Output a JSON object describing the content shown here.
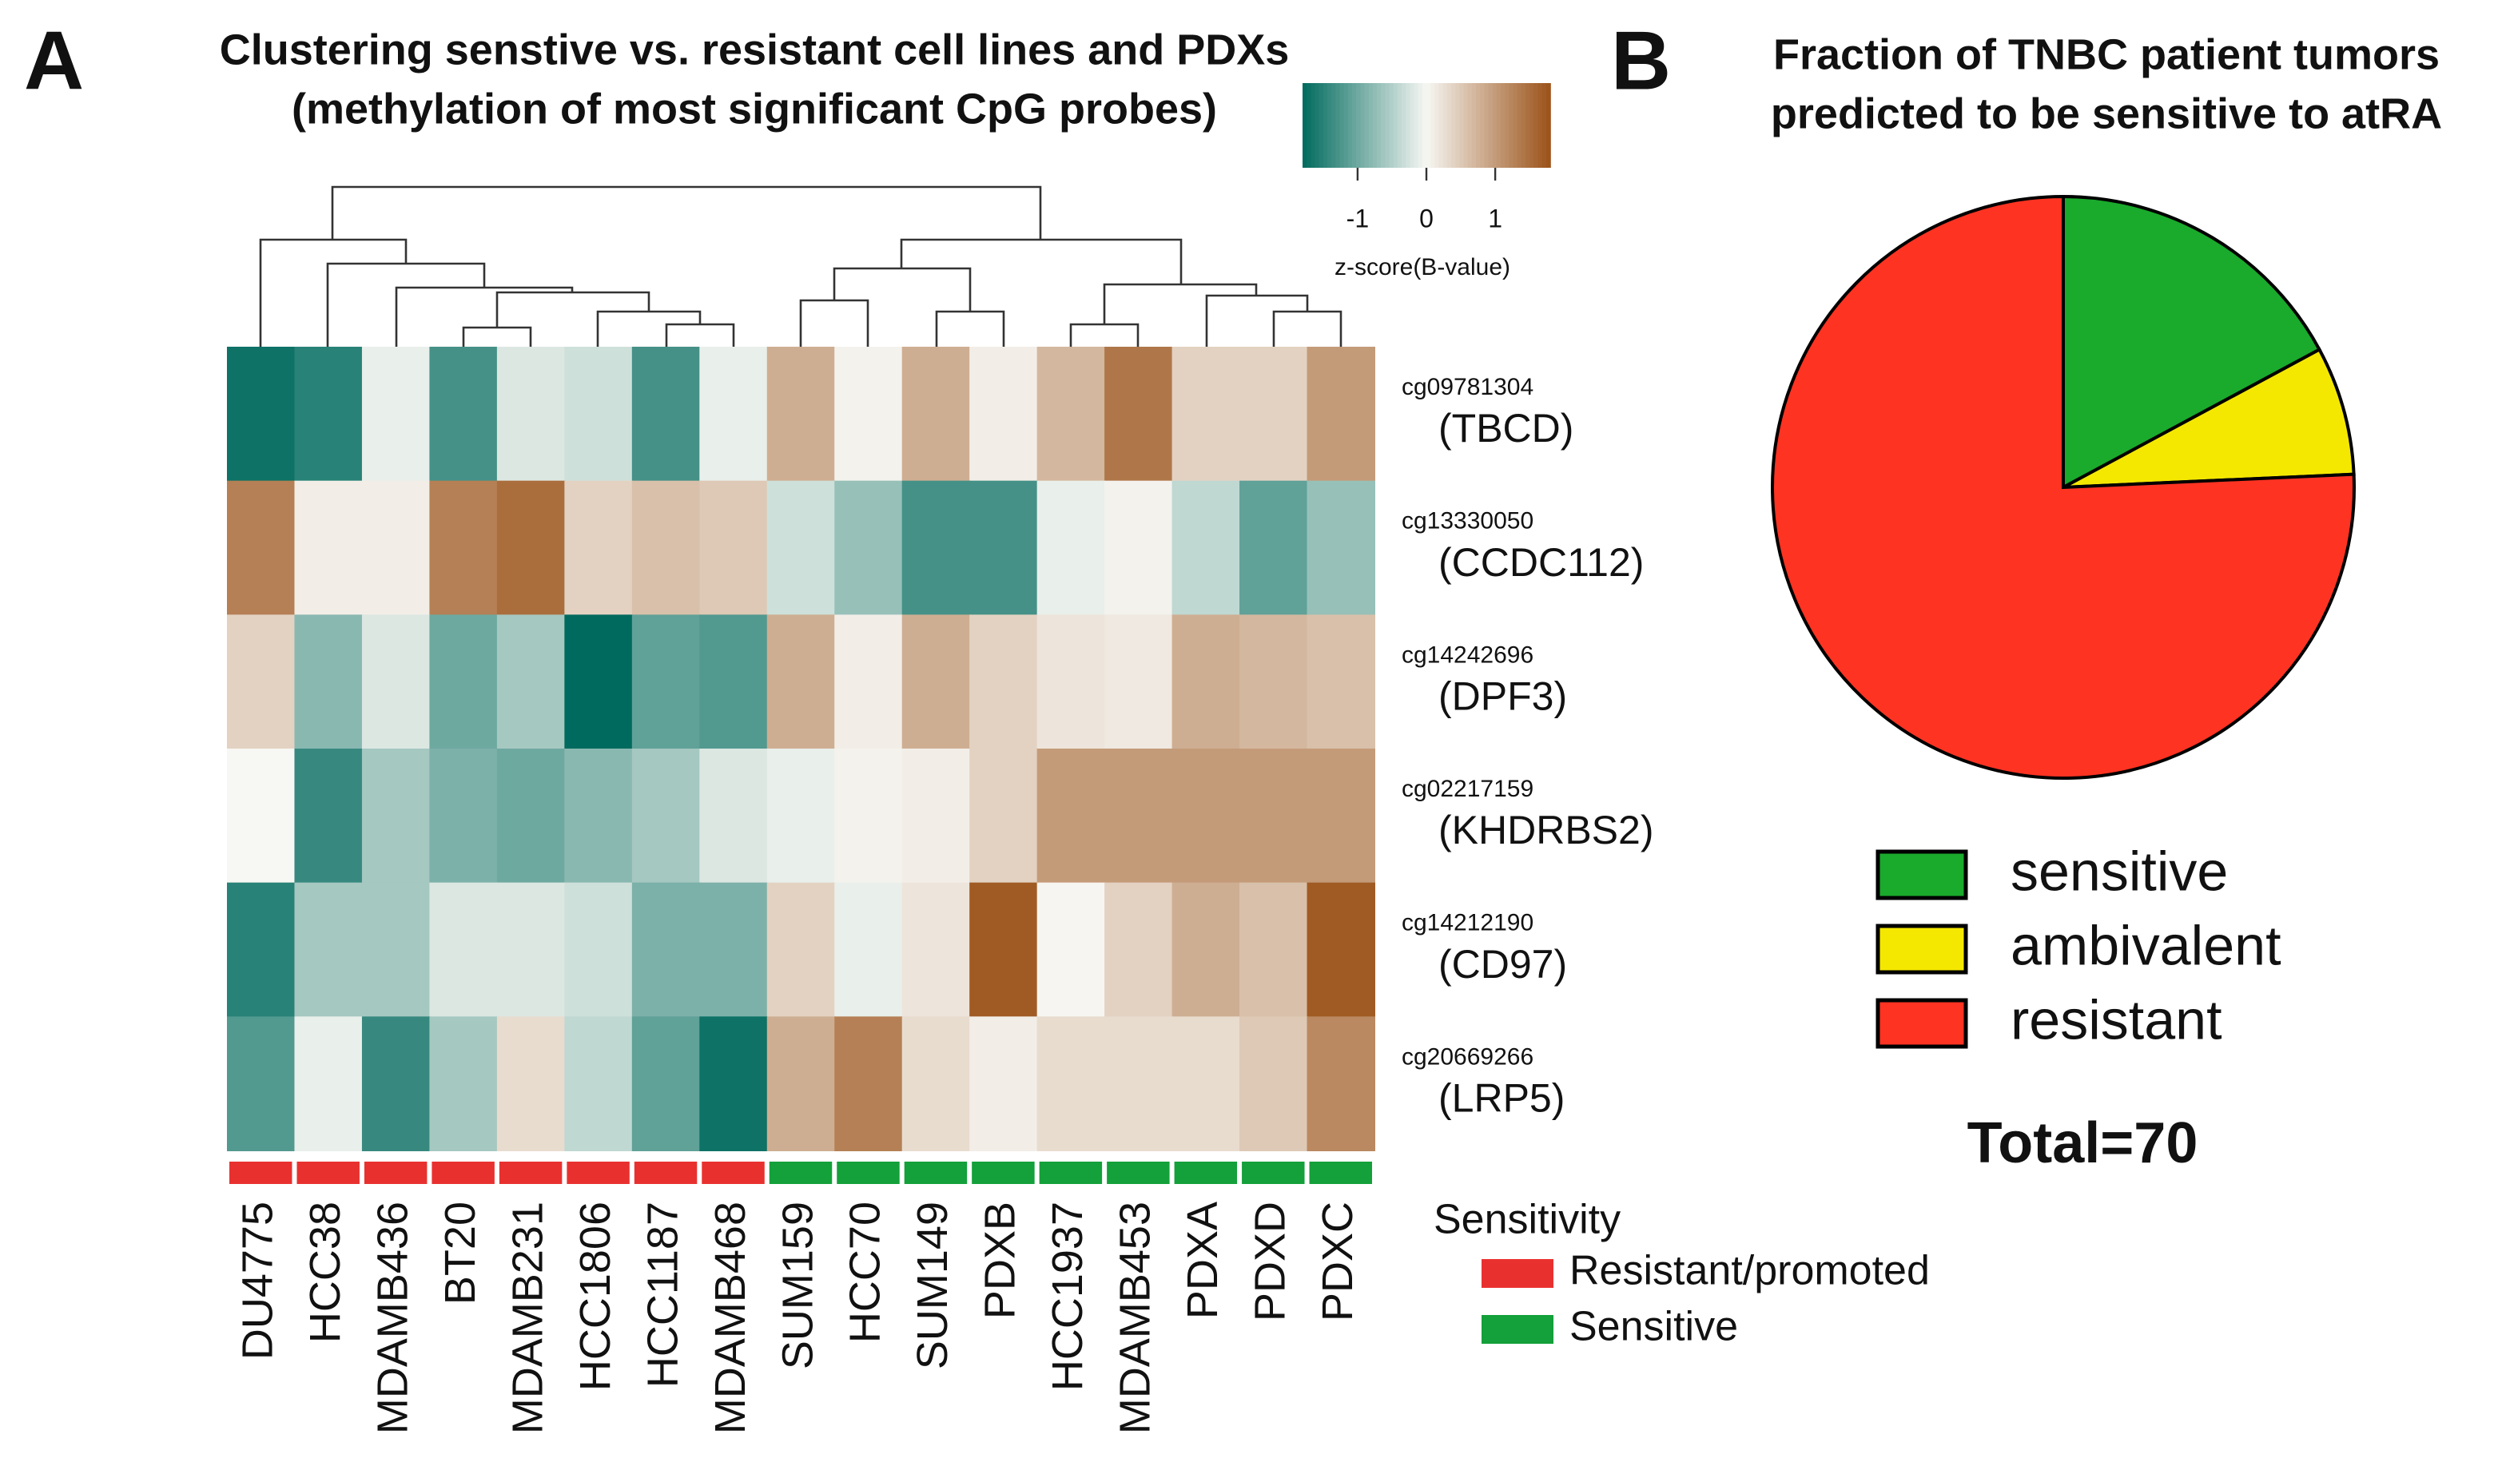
{
  "chart_data": [
    {
      "type": "heatmap",
      "panel": "A",
      "title": [
        "Clustering senstive vs. resistant cell lines and PDXs",
        "(methylation of most significant CpG probes)"
      ],
      "columns": [
        "DU4775",
        "HCC38",
        "MDAMB436",
        "BT20",
        "MDAMB231",
        "HCC1806",
        "HCC1187",
        "MDAMB468",
        "SUM159",
        "HCC70",
        "SUM149",
        "PDXB",
        "HCC1937",
        "MDAMB453",
        "PDXA",
        "PDXD",
        "PDXC"
      ],
      "rows": [
        {
          "probe": "cg09781304",
          "gene": "(TBCD)"
        },
        {
          "probe": "cg13330050",
          "gene": "(CCDC112)"
        },
        {
          "probe": "cg14242696",
          "gene": "(DPF3)"
        },
        {
          "probe": "cg02217159",
          "gene": "(KHDRBS2)"
        },
        {
          "probe": "cg14212190",
          "gene": "(CD97)"
        },
        {
          "probe": "cg20669266",
          "gene": "(LRP5)"
        }
      ],
      "values": [
        [
          -1.7,
          -1.5,
          -0.1,
          -1.3,
          -0.2,
          -0.3,
          -1.3,
          -0.1,
          0.8,
          0.05,
          0.8,
          0.1,
          0.7,
          1.4,
          0.4,
          0.4,
          1.0
        ],
        [
          1.3,
          0.1,
          0.1,
          1.3,
          1.5,
          0.4,
          0.6,
          0.5,
          -0.3,
          -0.7,
          -1.3,
          -1.3,
          -0.1,
          0.05,
          -0.4,
          -1.1,
          -0.7
        ],
        [
          0.4,
          -0.8,
          -0.2,
          -1.0,
          -0.6,
          -1.8,
          -1.1,
          -1.2,
          0.8,
          0.1,
          0.8,
          0.4,
          0.2,
          0.15,
          0.8,
          0.7,
          0.6
        ],
        [
          0.0,
          -1.4,
          -0.6,
          -0.9,
          -1.0,
          -0.8,
          -0.6,
          -0.2,
          -0.1,
          0.05,
          0.1,
          0.4,
          1.0,
          1.0,
          1.0,
          1.0,
          1.0
        ],
        [
          -1.5,
          -0.6,
          -0.6,
          -0.2,
          -0.2,
          -0.3,
          -0.9,
          -0.9,
          0.4,
          -0.1,
          0.2,
          1.7,
          0.02,
          0.4,
          0.8,
          0.6,
          1.7
        ],
        [
          -1.2,
          -0.1,
          -1.4,
          -0.6,
          0.3,
          -0.4,
          -1.1,
          -1.7,
          0.8,
          1.3,
          0.3,
          0.1,
          0.3,
          0.3,
          0.3,
          0.5,
          1.2
        ]
      ],
      "colors": [
        "#006a5e",
        "#f7f7f3",
        "#9b5218"
      ],
      "zlim": [
        -1.8,
        1.8
      ],
      "zticks": [
        -1,
        0,
        1
      ],
      "colorbar_label": "z-score(B-value)",
      "group_title": "Sensitivity",
      "groups": [
        {
          "name": "Resistant/promoted",
          "color": "#e8312f"
        },
        {
          "name": "Sensitive",
          "color": "#14a03a"
        }
      ],
      "column_group": [
        0,
        0,
        0,
        0,
        0,
        0,
        0,
        0,
        1,
        1,
        1,
        1,
        1,
        1,
        1,
        1,
        1
      ]
    },
    {
      "type": "pie",
      "panel": "B",
      "title": [
        "Fraction of TNBC patient tumors",
        "predicted to be sensitive to atRA"
      ],
      "categories": [
        "sensitive",
        "ambivalent",
        "resistant"
      ],
      "values": [
        12,
        5,
        53
      ],
      "colors": [
        "#1aaa2c",
        "#f5e800",
        "#ff3322"
      ],
      "total_label": "Total=70"
    }
  ]
}
